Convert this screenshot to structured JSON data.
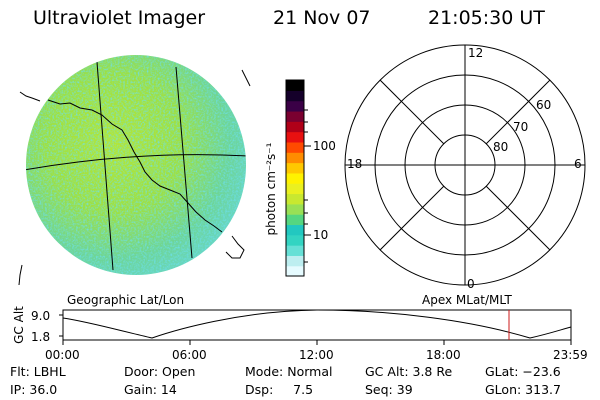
{
  "header": {
    "instrument": "Ultraviolet Imager",
    "date": "21 Nov 07",
    "time": "21:05:30 UT"
  },
  "colorbar": {
    "unit_label": "photon cm⁻²s⁻¹",
    "tick_100": "100",
    "tick_10": "10",
    "colors": [
      "#e6fbff",
      "#bdeef0",
      "#66e0d6",
      "#33d4c2",
      "#22c8c0",
      "#55d680",
      "#99e055",
      "#c8e830",
      "#eaf020",
      "#fff200",
      "#ffc800",
      "#ff8c00",
      "#ff4a00",
      "#e81010",
      "#b00018",
      "#7a0030",
      "#3a0046",
      "#15002a",
      "#000000"
    ]
  },
  "geo_panel": {
    "label": "Geographic Lat/Lon"
  },
  "polar_plot": {
    "label": "Apex MLat/MLT",
    "mlt_12": "12",
    "mlt_18": "18",
    "mlt_6": "6",
    "mlt_0": "0",
    "lat_60": "60",
    "lat_70": "70",
    "lat_80": "80"
  },
  "orbit_chart": {
    "ylabel": "GC Alt",
    "y_max": "9.0",
    "y_min": "1.8",
    "xticks": [
      "00:00",
      "06:00",
      "12:00",
      "18:00",
      "23:59"
    ],
    "current_time_marker": "21:05:30"
  },
  "footer": {
    "filter": "Flt: LBHL",
    "door": "Door: Open",
    "mode": "Mode: Normal",
    "gc_alt": "GC Alt: 3.8 Re",
    "glat": "GLat: −23.6",
    "ip": "IP: 36.0",
    "gain": "Gain: 14",
    "dsp": "Dsp:     7.5",
    "seq": "Seq: 39",
    "glon": "GLon: 313.7"
  }
}
